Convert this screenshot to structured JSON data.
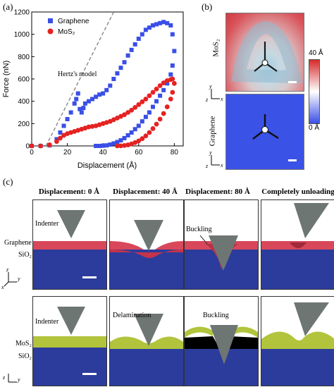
{
  "panels": {
    "a": "(a)",
    "b": "(b)",
    "c": "(c)"
  },
  "chart_data": {
    "type": "scatter",
    "xlabel": "Displacement (Å)",
    "ylabel": "Force (nN)",
    "xlim": [
      0,
      85
    ],
    "ylim": [
      0,
      1200
    ],
    "xticks": [
      0,
      20,
      40,
      60,
      80
    ],
    "yticks": [
      0,
      200,
      400,
      600,
      800,
      1000,
      1200
    ],
    "legend_position": "top-left",
    "annotation": "Hertz's model",
    "hertz_line": {
      "x": [
        8,
        46
      ],
      "y": [
        0,
        1200
      ]
    },
    "series": [
      {
        "name": "Graphene",
        "color": "#3a4fe6",
        "marker": "square",
        "x": [
          0,
          5,
          10,
          14,
          16,
          18,
          20,
          22,
          24,
          25,
          26,
          27,
          28,
          29,
          30,
          32,
          34,
          36,
          38,
          40,
          42,
          44,
          46,
          48,
          50,
          52,
          54,
          56,
          58,
          60,
          62,
          64,
          66,
          68,
          70,
          72,
          74,
          76,
          78,
          79,
          80,
          79,
          78,
          76,
          74,
          72,
          70,
          68,
          66,
          64,
          62,
          60,
          58,
          56,
          54,
          52,
          50,
          48,
          46,
          44,
          42,
          40,
          38,
          36
        ],
        "y": [
          0,
          0,
          5,
          60,
          120,
          180,
          240,
          300,
          380,
          420,
          470,
          330,
          300,
          340,
          380,
          400,
          420,
          440,
          460,
          470,
          500,
          540,
          600,
          650,
          700,
          750,
          810,
          860,
          910,
          960,
          1000,
          1040,
          1060,
          1080,
          1090,
          1100,
          1110,
          1100,
          1080,
          1000,
          850,
          720,
          640,
          560,
          500,
          450,
          400,
          350,
          300,
          260,
          220,
          180,
          150,
          120,
          95,
          70,
          50,
          35,
          22,
          12,
          5,
          2,
          0,
          0
        ]
      },
      {
        "name": "MoS₂",
        "color": "#e52222",
        "marker": "circle",
        "x": [
          0,
          5,
          10,
          14,
          16,
          18,
          20,
          22,
          24,
          26,
          28,
          30,
          32,
          34,
          36,
          38,
          40,
          42,
          44,
          46,
          48,
          50,
          52,
          54,
          56,
          58,
          60,
          62,
          64,
          66,
          68,
          70,
          72,
          74,
          76,
          78,
          79,
          80,
          79,
          78,
          76,
          74,
          72,
          70,
          68,
          66,
          64,
          62,
          60,
          58,
          56,
          54,
          52,
          50,
          48
        ],
        "y": [
          0,
          0,
          10,
          40,
          70,
          95,
          110,
          120,
          130,
          140,
          150,
          160,
          170,
          175,
          180,
          190,
          200,
          210,
          220,
          235,
          250,
          265,
          280,
          300,
          320,
          345,
          370,
          395,
          420,
          450,
          480,
          510,
          540,
          565,
          585,
          595,
          600,
          560,
          480,
          420,
          350,
          290,
          240,
          195,
          155,
          120,
          90,
          65,
          45,
          30,
          18,
          9,
          4,
          1,
          0
        ]
      }
    ]
  },
  "panel_b": {
    "mos2_label": "MoS₂",
    "graphene_label": "Graphene",
    "colorbar_max": "40 Å",
    "colorbar_min": "0 Å",
    "colorbar_colors": [
      "#d62a2a",
      "#ffffff",
      "#3a4fe6"
    ],
    "axes": {
      "y": "y",
      "z": "z",
      "x": "x"
    }
  },
  "panel_c": {
    "column_titles": [
      "Displacement: 0 Å",
      "Displacement: 40 Å",
      "Displacement: 80 Å",
      "Completely unloading"
    ],
    "row1": {
      "indenter": "Indenter",
      "layer": "Graphene",
      "substrate": "SiO₂",
      "buckling": "Buckling"
    },
    "row2": {
      "indenter": "Indenter",
      "layer": "MoS₂",
      "substrate": "SiO₂",
      "delamination": "Delamination",
      "buckling": "Buckling"
    },
    "axes": {
      "z": "z",
      "y": "y",
      "x": "x"
    },
    "colors": {
      "substrate": "#2c3c9c",
      "graphene": "#d8485a",
      "mos2": "#b2c43c",
      "indenter": "#6e7674"
    }
  }
}
